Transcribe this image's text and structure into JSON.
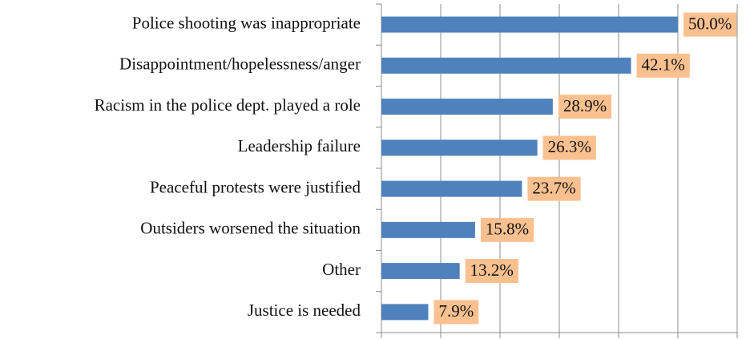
{
  "chart_data": {
    "type": "bar",
    "orientation": "horizontal",
    "categories": [
      "Police shooting was inappropriate",
      "Disappointment/hopelessness/anger",
      "Racism in the police dept. played a role",
      "Leadership failure",
      "Peaceful protests were justified",
      "Outsiders worsened the situation",
      "Other",
      "Justice is needed"
    ],
    "values": [
      50.0,
      42.1,
      28.9,
      26.3,
      23.7,
      15.8,
      13.2,
      7.9
    ],
    "value_labels": [
      "50.0%",
      "42.1%",
      "28.9%",
      "26.3%",
      "23.7%",
      "15.8%",
      "13.2%",
      "7.9%"
    ],
    "color": "#4f81bd",
    "label_color": "#fac090",
    "xlim": [
      0,
      60
    ],
    "xticks": [
      0,
      10,
      20,
      30,
      40,
      50,
      60
    ],
    "grid": true
  }
}
